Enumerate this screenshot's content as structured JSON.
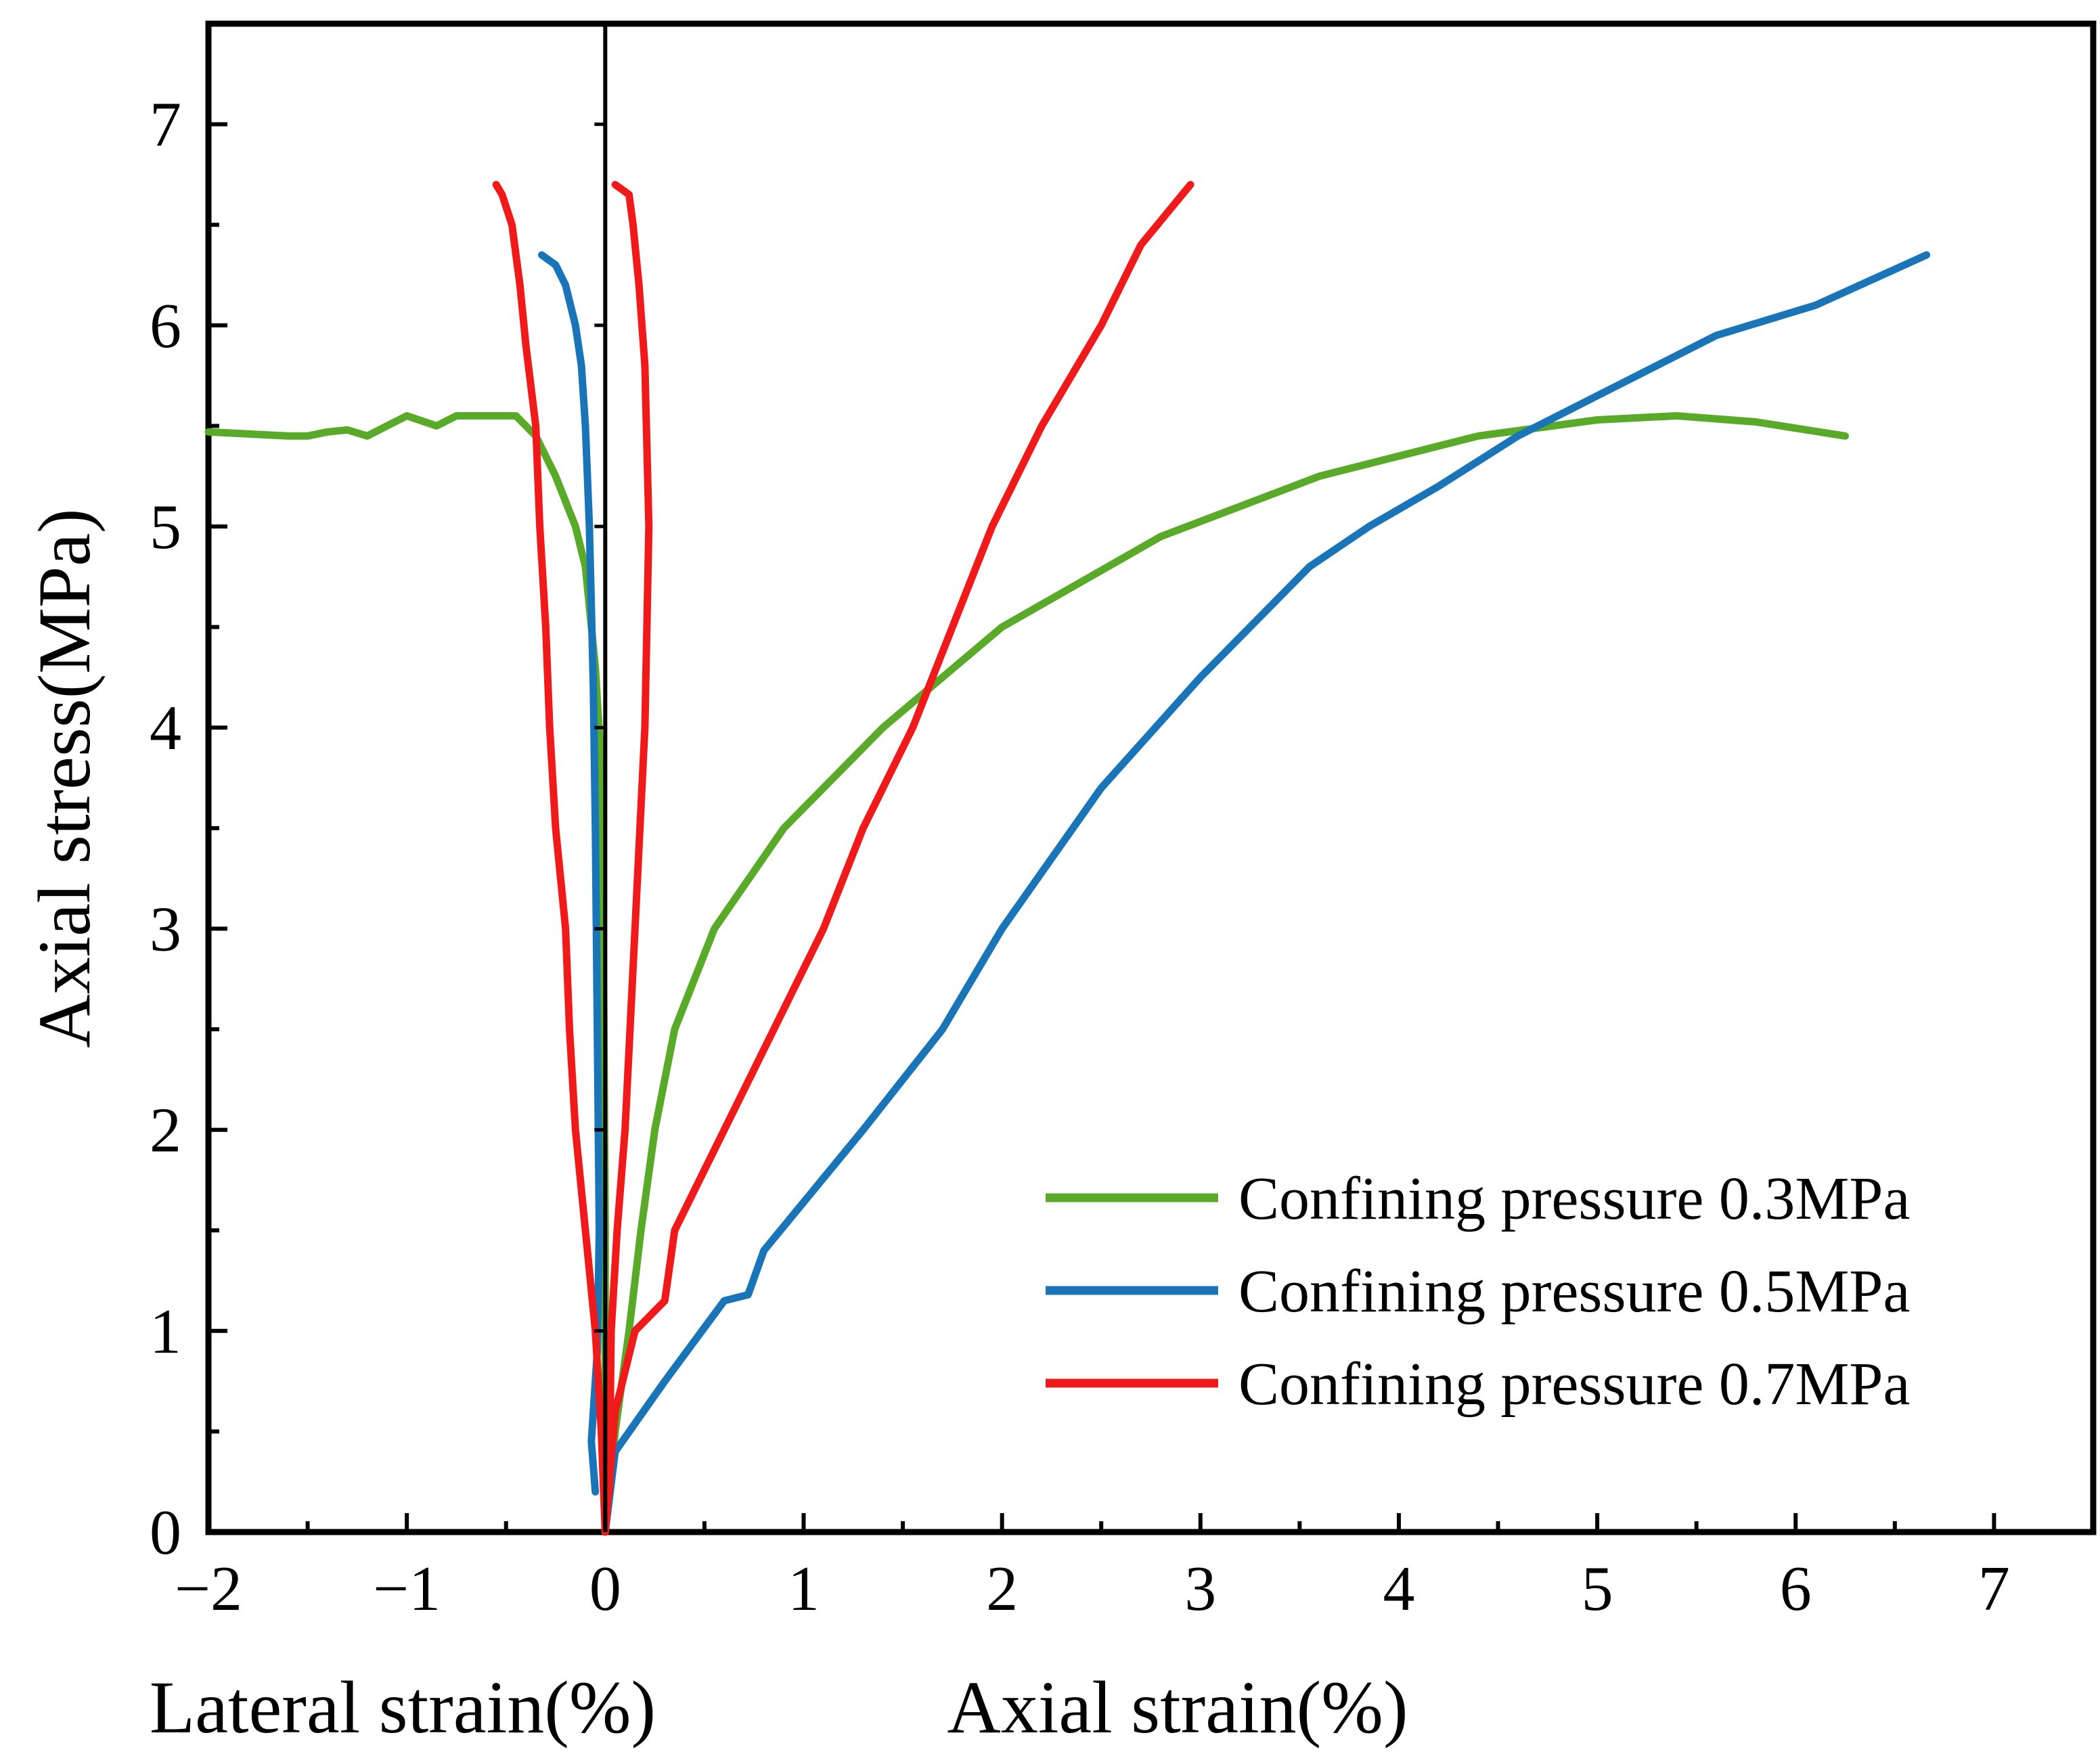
{
  "chart_data": {
    "type": "line",
    "title": "",
    "ylabel": "Axial stress(MPa)",
    "xlabel_left": "Lateral strain(%)",
    "xlabel_right": "Axial strain(%)",
    "xlim": [
      -2,
      7.5
    ],
    "ylim": [
      0,
      7.5
    ],
    "xticks": [
      -2,
      -1,
      0,
      1,
      2,
      3,
      4,
      5,
      6,
      7
    ],
    "xtick_labels": [
      "−2",
      "−1",
      "0",
      "1",
      "2",
      "3",
      "4",
      "5",
      "6",
      "7"
    ],
    "yticks": [
      0,
      1,
      2,
      3,
      4,
      5,
      6,
      7
    ],
    "ytick_labels": [
      "0",
      "1",
      "2",
      "3",
      "4",
      "5",
      "6",
      "7"
    ],
    "grid": false,
    "legend_position": "bottom-right",
    "series": [
      {
        "name": "Confining pressure 0.3MPa",
        "color": "#5aaa2a",
        "lateral": [
          [
            0,
            0
          ],
          [
            0,
            0.5
          ],
          [
            0,
            1.5
          ],
          [
            -0.01,
            3.0
          ],
          [
            -0.02,
            3.8
          ],
          [
            -0.05,
            4.3
          ],
          [
            -0.1,
            4.8
          ],
          [
            -0.15,
            5.0
          ],
          [
            -0.25,
            5.25
          ],
          [
            -0.35,
            5.45
          ],
          [
            -0.45,
            5.55
          ],
          [
            -0.55,
            5.55
          ],
          [
            -0.65,
            5.55
          ],
          [
            -0.75,
            5.55
          ],
          [
            -0.85,
            5.5
          ],
          [
            -1.0,
            5.55
          ],
          [
            -1.1,
            5.5
          ],
          [
            -1.2,
            5.45
          ],
          [
            -1.3,
            5.48
          ],
          [
            -1.4,
            5.47
          ],
          [
            -1.5,
            5.45
          ],
          [
            -1.6,
            5.45
          ],
          [
            -1.8,
            5.46
          ],
          [
            -2.0,
            5.47
          ]
        ],
        "axial": [
          [
            0,
            0
          ],
          [
            0.05,
            0.5
          ],
          [
            0.12,
            1.0
          ],
          [
            0.18,
            1.5
          ],
          [
            0.25,
            2.0
          ],
          [
            0.35,
            2.5
          ],
          [
            0.55,
            3.0
          ],
          [
            0.9,
            3.5
          ],
          [
            1.4,
            4.0
          ],
          [
            2.0,
            4.5
          ],
          [
            2.8,
            4.95
          ],
          [
            3.6,
            5.25
          ],
          [
            4.4,
            5.45
          ],
          [
            5.0,
            5.53
          ],
          [
            5.4,
            5.55
          ],
          [
            5.8,
            5.52
          ],
          [
            6.25,
            5.45
          ]
        ]
      },
      {
        "name": "Confining pressure 0.5MPa",
        "color": "#1a75b8",
        "lateral": [
          [
            -0.05,
            0.2
          ],
          [
            -0.07,
            0.45
          ],
          [
            -0.04,
            0.9
          ],
          [
            -0.03,
            1.5
          ],
          [
            -0.04,
            2.5
          ],
          [
            -0.05,
            3.5
          ],
          [
            -0.06,
            4.2
          ],
          [
            -0.08,
            5.0
          ],
          [
            -0.1,
            5.5
          ],
          [
            -0.12,
            5.8
          ],
          [
            -0.15,
            6.0
          ],
          [
            -0.2,
            6.2
          ],
          [
            -0.25,
            6.3
          ],
          [
            -0.32,
            6.35
          ]
        ],
        "axial": [
          [
            0,
            0
          ],
          [
            0.05,
            0.4
          ],
          [
            0.3,
            0.75
          ],
          [
            0.6,
            1.15
          ],
          [
            0.72,
            1.18
          ],
          [
            0.8,
            1.4
          ],
          [
            1.3,
            2.0
          ],
          [
            1.7,
            2.5
          ],
          [
            2.0,
            3.0
          ],
          [
            2.5,
            3.7
          ],
          [
            3.0,
            4.25
          ],
          [
            3.55,
            4.8
          ],
          [
            3.85,
            5.0
          ],
          [
            4.2,
            5.2
          ],
          [
            4.6,
            5.45
          ],
          [
            5.1,
            5.7
          ],
          [
            5.6,
            5.95
          ],
          [
            6.1,
            6.1
          ],
          [
            6.66,
            6.35
          ]
        ]
      },
      {
        "name": "Confining pressure 0.7MPa",
        "color": "#f01a1a",
        "lateral": [
          [
            0,
            0
          ],
          [
            -0.02,
            0.5
          ],
          [
            -0.05,
            1.0
          ],
          [
            -0.1,
            1.5
          ],
          [
            -0.15,
            2.0
          ],
          [
            -0.18,
            2.5
          ],
          [
            -0.2,
            3.0
          ],
          [
            -0.25,
            3.5
          ],
          [
            -0.28,
            4.0
          ],
          [
            -0.3,
            4.5
          ],
          [
            -0.33,
            5.0
          ],
          [
            -0.35,
            5.5
          ],
          [
            -0.4,
            5.9
          ],
          [
            -0.43,
            6.2
          ],
          [
            -0.47,
            6.5
          ],
          [
            -0.52,
            6.65
          ],
          [
            -0.55,
            6.7
          ]
        ],
        "axial": [
          [
            0,
            0
          ],
          [
            0.05,
            0.6
          ],
          [
            0.15,
            1.0
          ],
          [
            0.25,
            1.1
          ],
          [
            0.3,
            1.15
          ],
          [
            0.35,
            1.5
          ],
          [
            0.6,
            2.0
          ],
          [
            0.85,
            2.5
          ],
          [
            1.1,
            3.0
          ],
          [
            1.3,
            3.5
          ],
          [
            1.55,
            4.0
          ],
          [
            1.75,
            4.5
          ],
          [
            1.95,
            5.0
          ],
          [
            2.2,
            5.5
          ],
          [
            2.5,
            6.0
          ],
          [
            2.7,
            6.4
          ],
          [
            2.95,
            6.7
          ]
        ],
        "lateral_inner": [
          [
            0.02,
            0.2
          ],
          [
            0.03,
            1.0
          ],
          [
            0.06,
            1.5
          ],
          [
            0.1,
            2.0
          ],
          [
            0.15,
            3.0
          ],
          [
            0.2,
            4.0
          ],
          [
            0.22,
            5.0
          ],
          [
            0.2,
            5.8
          ],
          [
            0.17,
            6.2
          ],
          [
            0.14,
            6.5
          ],
          [
            0.12,
            6.65
          ],
          [
            0.05,
            6.7
          ]
        ]
      }
    ]
  }
}
